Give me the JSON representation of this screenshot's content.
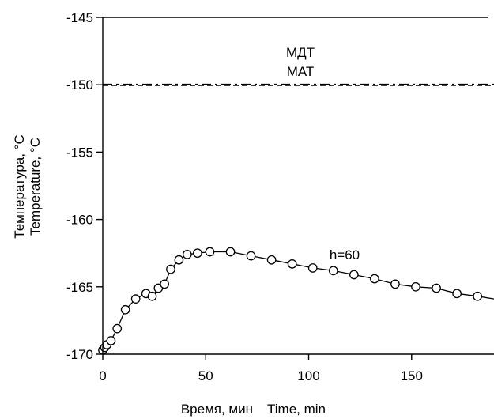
{
  "chart_data": {
    "type": "line",
    "title": "",
    "xlabel_ru": "Время, мин",
    "xlabel_en": "Time, min",
    "ylabel_ru": "Температура, °C",
    "ylabel_en": "Temperature, °C",
    "xlim": [
      0,
      190
    ],
    "ylim": [
      -170,
      -145
    ],
    "xticks": [
      0,
      50,
      100,
      150
    ],
    "yticks": [
      -145,
      -150,
      -155,
      -160,
      -165,
      -170
    ],
    "xtick_labels": [
      "0",
      "50",
      "100",
      "150"
    ],
    "ytick_labels": [
      "-145",
      "-150",
      "-155",
      "-160",
      "-165",
      "-170"
    ],
    "grid": false,
    "reference_lines": [
      {
        "label": "МДТ",
        "y": -150,
        "style": "dash-dot"
      },
      {
        "label": "МАТ",
        "y": -150,
        "style": "dashed"
      }
    ],
    "series": [
      {
        "name": "h=60",
        "marker": "circle",
        "x": [
          0,
          1,
          2,
          4,
          7,
          11,
          16,
          21,
          24,
          27,
          30,
          33,
          37,
          41,
          46,
          52,
          62,
          72,
          82,
          92,
          102,
          112,
          122,
          132,
          142,
          152,
          162,
          172,
          182
        ],
        "y": [
          -169.7,
          -169.5,
          -169.3,
          -169.0,
          -168.1,
          -166.7,
          -165.9,
          -165.5,
          -165.7,
          -165.1,
          -164.8,
          -163.7,
          -163.0,
          -162.6,
          -162.5,
          -162.4,
          -162.4,
          -162.7,
          -163.0,
          -163.3,
          -163.6,
          -163.8,
          -164.1,
          -164.4,
          -164.8,
          -165.0,
          -165.1,
          -165.5,
          -165.7
        ],
        "line_x": [
          0,
          1,
          2,
          4,
          7,
          11,
          16,
          21,
          24,
          27,
          30,
          33,
          37,
          41,
          46,
          52,
          62,
          72,
          82,
          92,
          102,
          112,
          122,
          132,
          142,
          152,
          162,
          172,
          182,
          190
        ],
        "line_y": [
          -169.7,
          -169.5,
          -169.3,
          -169.0,
          -168.1,
          -166.7,
          -165.9,
          -165.5,
          -165.7,
          -165.1,
          -164.8,
          -163.7,
          -163.0,
          -162.6,
          -162.5,
          -162.4,
          -162.4,
          -162.7,
          -163.0,
          -163.3,
          -163.6,
          -163.8,
          -164.1,
          -164.4,
          -164.8,
          -165.0,
          -165.1,
          -165.5,
          -165.7,
          -165.9
        ]
      }
    ],
    "annotations": [
      {
        "text": "h=60",
        "x": 120,
        "y": -161.5
      }
    ]
  }
}
